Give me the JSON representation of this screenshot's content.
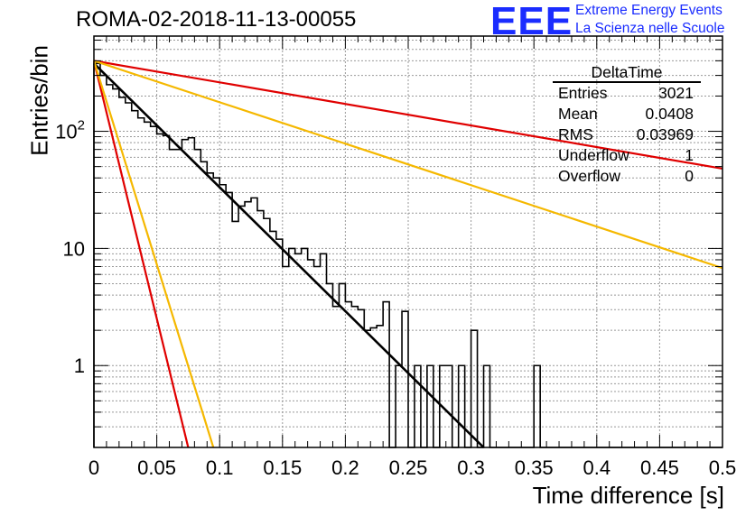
{
  "header": {
    "title": "ROMA-02-2018-11-13-00055",
    "logo_text": "EEE",
    "logo_line1": "Extreme Energy Events",
    "logo_line2": "La Scienza nelle Scuole",
    "logo_color": "#1a2cff"
  },
  "stats_box": {
    "title": "DeltaTime",
    "rows": [
      {
        "label": "Entries",
        "value": "3021"
      },
      {
        "label": "Mean",
        "value": "0.0408"
      },
      {
        "label": "RMS",
        "value": "0.03969"
      },
      {
        "label": "Underflow",
        "value": "1"
      },
      {
        "label": "Overflow",
        "value": "0"
      }
    ]
  },
  "chart_data": {
    "type": "bar",
    "xlabel": "Time difference [s]",
    "ylabel": "Entries/bin",
    "xlim": [
      0,
      0.5
    ],
    "ylim": [
      0.2,
      650
    ],
    "yscale": "log",
    "grid": true,
    "x_ticks": [
      "0",
      "0.05",
      "0.1",
      "0.15",
      "0.2",
      "0.25",
      "0.3",
      "0.35",
      "0.4",
      "0.45",
      "0.5"
    ],
    "x_tick_values": [
      0,
      0.05,
      0.1,
      0.15,
      0.2,
      0.25,
      0.3,
      0.35,
      0.4,
      0.45,
      0.5
    ],
    "y_ticks": [
      "1",
      "10",
      "10^2"
    ],
    "y_tick_values": [
      1,
      10,
      100
    ],
    "bin_width": 0.005,
    "histogram": {
      "name": "DeltaTime",
      "color": "#000000",
      "values": [
        380,
        300,
        250,
        230,
        195,
        175,
        150,
        130,
        120,
        110,
        95,
        92,
        70,
        70,
        85,
        88,
        70,
        55,
        44,
        40,
        35,
        30,
        17,
        23,
        25,
        27,
        21,
        18,
        14,
        12,
        7,
        10,
        9,
        10,
        8,
        7,
        9,
        5,
        3.2,
        5,
        3.5,
        3.2,
        3,
        2,
        2.1,
        2.2,
        3.5,
        0.2,
        1,
        2.9,
        0.2,
        1,
        0.2,
        1,
        0.2,
        1,
        1,
        0.2,
        1,
        0.2,
        2,
        0.2,
        1,
        0.2,
        0.2,
        0.2,
        0.2,
        0.2,
        0.2,
        0.2,
        1,
        0.2,
        0.2,
        0.2,
        0.2,
        0.2,
        0.2,
        0.2,
        0.2,
        0.2,
        0.2,
        0.2,
        0.2,
        0.2,
        0.2,
        0.2,
        0.2,
        0.2,
        0.2,
        0.2,
        0.2,
        0.2,
        0.2,
        0.2,
        0.2,
        0.2,
        0.2,
        0.2,
        0.2,
        0.2
      ]
    },
    "series": [
      {
        "color": "#000000",
        "x": [
          0,
          0.31
        ],
        "y": [
          380,
          0.2
        ]
      },
      {
        "color": "#e00000",
        "x": [
          0,
          0.5
        ],
        "y": [
          400,
          48
        ]
      },
      {
        "color": "#f5b800",
        "x": [
          0,
          0.5
        ],
        "y": [
          400,
          6.8
        ]
      },
      {
        "color": "#e00000",
        "x": [
          0,
          0.075
        ],
        "y": [
          400,
          0.2
        ]
      },
      {
        "color": "#f5b800",
        "x": [
          0,
          0.095
        ],
        "y": [
          400,
          0.2
        ]
      }
    ]
  }
}
